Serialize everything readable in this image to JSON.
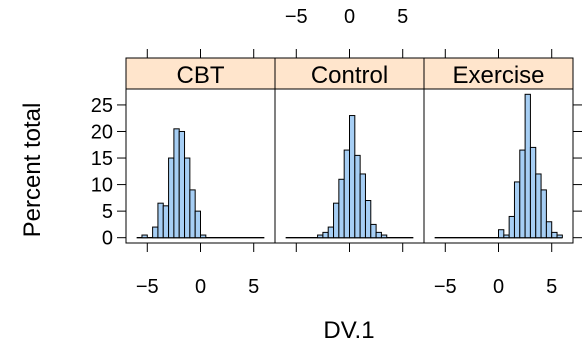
{
  "chart_data": {
    "type": "bar",
    "xlabel": "DV.1",
    "ylabel": "Percent total",
    "xlim": [
      -7,
      7
    ],
    "ylim": [
      -1,
      28
    ],
    "x_ticks": [
      -5,
      0,
      5
    ],
    "y_ticks": [
      0,
      5,
      10,
      15,
      20,
      25
    ],
    "bin_width": 0.5,
    "bar_color": "#a6cef4",
    "bin_starts": [
      -6,
      -5.5,
      -5,
      -4.5,
      -4,
      -3.5,
      -3,
      -2.5,
      -2,
      -1.5,
      -1,
      -0.5,
      0,
      0.5,
      1,
      1.5,
      2,
      2.5,
      3,
      3.5,
      4,
      4.5,
      5,
      5.5
    ],
    "panels": [
      {
        "name": "CBT",
        "values": [
          0,
          0.5,
          0,
          2,
          6.5,
          6,
          15,
          20.5,
          20,
          15,
          9,
          5,
          0.5,
          0,
          0,
          0,
          0,
          0,
          0,
          0,
          0,
          0,
          0,
          0
        ]
      },
      {
        "name": "Control",
        "values": [
          0,
          0,
          0,
          0,
          0,
          0,
          0.5,
          1,
          2,
          6.5,
          11,
          16.5,
          23,
          15.5,
          12,
          7,
          2.5,
          1,
          0.5,
          0,
          0,
          0,
          0,
          0
        ]
      },
      {
        "name": "Exercise",
        "values": [
          0,
          0,
          0,
          0,
          0,
          0,
          0,
          0,
          0,
          0,
          0,
          0,
          1.5,
          0.5,
          4,
          10.5,
          16.5,
          27,
          17,
          12,
          9,
          3,
          1,
          0.5
        ]
      }
    ]
  }
}
